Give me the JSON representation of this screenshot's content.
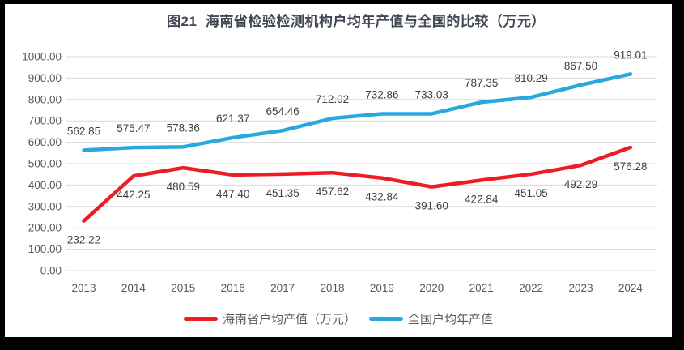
{
  "page": {
    "frame_color": "#000000",
    "paper_color": "#ffffff"
  },
  "chart_data": {
    "type": "line",
    "title": "图21  海南省检验检测机构户均年产值与全国的比较（万元）",
    "categories": [
      "2013",
      "2014",
      "2015",
      "2016",
      "2017",
      "2018",
      "2019",
      "2020",
      "2021",
      "2022",
      "2023",
      "2024"
    ],
    "series": [
      {
        "name": "海南省户均产值（万元）",
        "color": "#ee1c25",
        "label_position": "below",
        "values": [
          232.22,
          442.25,
          480.59,
          447.4,
          451.35,
          457.62,
          432.84,
          391.6,
          422.84,
          451.05,
          492.29,
          576.28
        ]
      },
      {
        "name": "全国户均年产值",
        "color": "#29a8df",
        "label_position": "above",
        "values": [
          562.85,
          575.47,
          578.36,
          621.37,
          654.46,
          712.02,
          732.86,
          733.03,
          787.35,
          810.29,
          867.5,
          919.01
        ]
      }
    ],
    "ylim": [
      0,
      1000
    ],
    "yticks": [
      "0.00",
      "100.00",
      "200.00",
      "300.00",
      "400.00",
      "500.00",
      "600.00",
      "700.00",
      "800.00",
      "900.00",
      "1000.00"
    ],
    "label_decimals": 2,
    "grid": true,
    "legend_position": "bottom",
    "colors": {
      "gridline": "#d9d9d9",
      "axis_text": "#595959",
      "data_label": "#404040",
      "title_text": "#414753",
      "legend_text": "#595959"
    }
  }
}
